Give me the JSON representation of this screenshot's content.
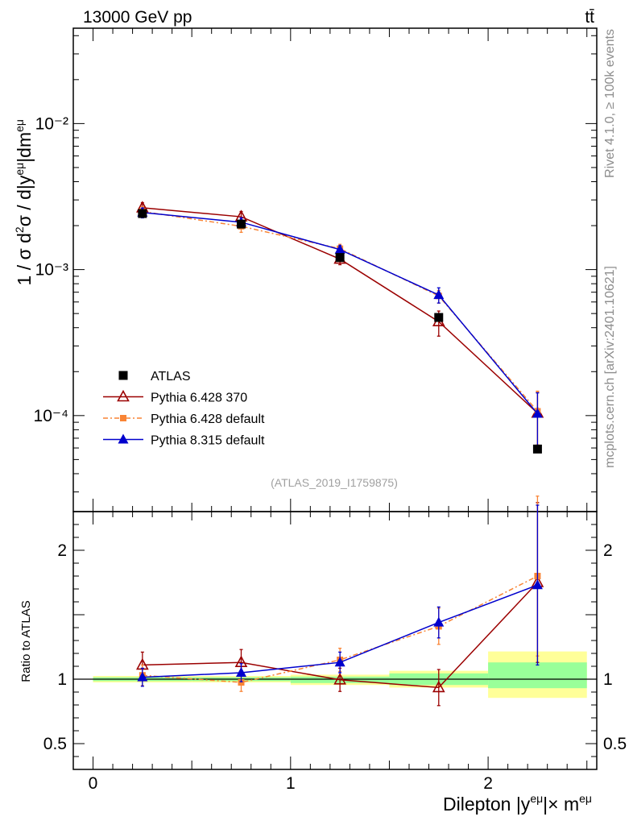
{
  "header": {
    "left_title": "13000 GeV pp",
    "right_title": "tt̄"
  },
  "side_labels": {
    "rivet": "Rivet 4.1.0, ≥ 100k events",
    "mcplots": "mcplots.cern.ch [arXiv:2401.10621]"
  },
  "watermark": "(ATLAS_2019_I1759875)",
  "chart_data": [
    {
      "type": "scatter",
      "panel": "main",
      "yscale": "log",
      "ylabel": "1 / σ  d²σ / d|y^eμ|dm^eμ",
      "xlabel": "Dilepton |y^eμ|× m^eμ",
      "xlim": [
        -0.1,
        2.55
      ],
      "ylim": [
        2.2e-05,
        0.045
      ],
      "y_ticks": [
        {
          "value": 0.0001,
          "label": "10⁻⁴"
        },
        {
          "value": 0.001,
          "label": "10⁻³"
        },
        {
          "value": 0.01,
          "label": "10⁻²"
        }
      ],
      "bins": [
        [
          0,
          0.5
        ],
        [
          0.5,
          1.0
        ],
        [
          1.0,
          1.5
        ],
        [
          1.5,
          2.0
        ],
        [
          2.0,
          2.5
        ]
      ],
      "x": [
        0.25,
        0.75,
        1.25,
        1.75,
        2.25
      ],
      "series": [
        {
          "name": "ATLAS",
          "color": "#000000",
          "marker": "square",
          "values": [
            0.00242,
            0.00205,
            0.00121,
            0.00047,
            5.9e-05
          ]
        },
        {
          "name": "Pythia 6.428 370",
          "color": "#9b0000",
          "marker": "open-triangle",
          "values": [
            0.00265,
            0.0023,
            0.00118,
            0.00044,
            0.000104
          ],
          "err_lo": [
            0.00025,
            0.00022,
            0.0001,
            9e-05,
            4.4e-05
          ],
          "err_hi": [
            0.00022,
            0.0002,
            9e-05,
            8e-05,
            4e-05
          ]
        },
        {
          "name": "Pythia 6.428 default",
          "color": "#f98435",
          "marker": "filled-square",
          "values": [
            0.0025,
            0.00198,
            0.00139,
            0.00066,
            0.000107
          ],
          "err_lo": [
            0.00022,
            0.00018,
            0.00011,
            7e-05,
            4.4e-05
          ],
          "err_hi": [
            0.0002,
            0.00016,
            0.0001,
            6e-05,
            4e-05
          ]
        },
        {
          "name": "Pythia 8.315 default",
          "color": "#0000cd",
          "marker": "filled-triangle",
          "values": [
            0.00246,
            0.00211,
            0.00137,
            0.00067,
            0.000103
          ],
          "err_lo": [
            0.0002,
            0.00016,
            0.0001,
            8e-05,
            4.4e-05
          ],
          "err_hi": [
            0.00018,
            0.00015,
            9e-05,
            8e-05,
            4e-05
          ]
        }
      ]
    },
    {
      "type": "scatter",
      "panel": "ratio",
      "ylabel": "Ratio to ATLAS",
      "xlabel": "Dilepton |y^eμ|× m^eμ",
      "xlim": [
        -0.1,
        2.55
      ],
      "ylim": [
        0.3,
        2.3
      ],
      "y_ticks": [
        {
          "value": 0.5,
          "label": "0.5"
        },
        {
          "value": 1,
          "label": "1"
        },
        {
          "value": 2,
          "label": "2"
        }
      ],
      "x_ticks": [
        {
          "value": 0,
          "label": "0"
        },
        {
          "value": 1,
          "label": "1"
        },
        {
          "value": 2,
          "label": "2"
        }
      ],
      "bands": {
        "bins": [
          [
            0,
            0.5
          ],
          [
            0.5,
            1.0
          ],
          [
            1.0,
            1.5
          ],
          [
            1.5,
            2.0
          ],
          [
            2.0,
            2.5
          ]
        ],
        "green": [
          [
            0.985,
            1.015
          ],
          [
            0.985,
            1.015
          ],
          [
            0.97,
            1.02
          ],
          [
            0.955,
            1.045
          ],
          [
            0.93,
            1.13
          ]
        ],
        "yellow": [
          [
            0.975,
            1.025
          ],
          [
            0.975,
            1.025
          ],
          [
            0.955,
            1.035
          ],
          [
            0.935,
            1.065
          ],
          [
            0.855,
            1.215
          ]
        ]
      },
      "series": [
        {
          "name": "Pythia 6.428 370",
          "color": "#9b0000",
          "marker": "open-triangle",
          "values": [
            1.11,
            1.13,
            0.995,
            0.935,
            1.75
          ],
          "err_lo": [
            0.1,
            0.1,
            0.09,
            0.14,
            0.62
          ],
          "err_hi": [
            0.1,
            0.1,
            0.09,
            0.14,
            0.62
          ]
        },
        {
          "name": "Pythia 6.428 default",
          "color": "#f98435",
          "marker": "filled-square",
          "values": [
            1.03,
            0.975,
            1.15,
            1.41,
            1.8
          ],
          "err_lo": [
            0.08,
            0.07,
            0.09,
            0.14,
            0.62
          ],
          "err_hi": [
            0.08,
            0.07,
            0.09,
            0.14,
            0.62
          ]
        },
        {
          "name": "Pythia 8.315 default",
          "color": "#0000cd",
          "marker": "filled-triangle",
          "values": [
            1.015,
            1.05,
            1.13,
            1.44,
            1.73
          ],
          "err_lo": [
            0.07,
            0.07,
            0.08,
            0.12,
            0.62
          ],
          "err_hi": [
            0.07,
            0.07,
            0.08,
            0.12,
            0.62
          ]
        }
      ]
    }
  ]
}
